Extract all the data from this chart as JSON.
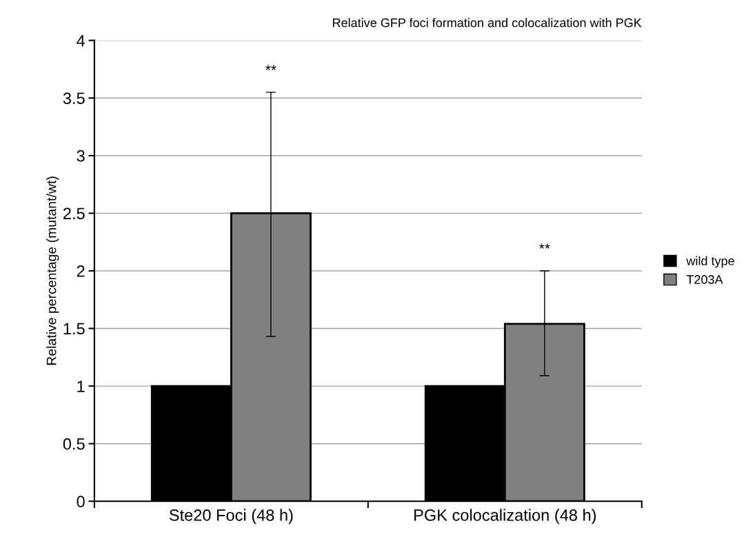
{
  "chart_data": {
    "type": "bar",
    "title": "Relative GFP foci formation and colocalization with PGK",
    "ylabel": "Relative percentage (mutant/wt)",
    "categories": [
      "Ste20 Foci (48 h)",
      "PGK colocalization (48 h)"
    ],
    "series": [
      {
        "name": "wild type",
        "color": "#000000",
        "values": [
          1.0,
          1.0
        ]
      },
      {
        "name": "T203A",
        "color": "#808080",
        "values": [
          2.5,
          1.54
        ],
        "errors": [
          [
            1.43,
            3.55
          ],
          [
            1.09,
            2.0
          ]
        ]
      }
    ],
    "annotations": [
      "**",
      "**"
    ],
    "ylim": [
      0,
      4
    ],
    "yticks": [
      0,
      0.5,
      1,
      1.5,
      2,
      2.5,
      3,
      3.5,
      4
    ],
    "grid": "y",
    "legend": "right"
  }
}
